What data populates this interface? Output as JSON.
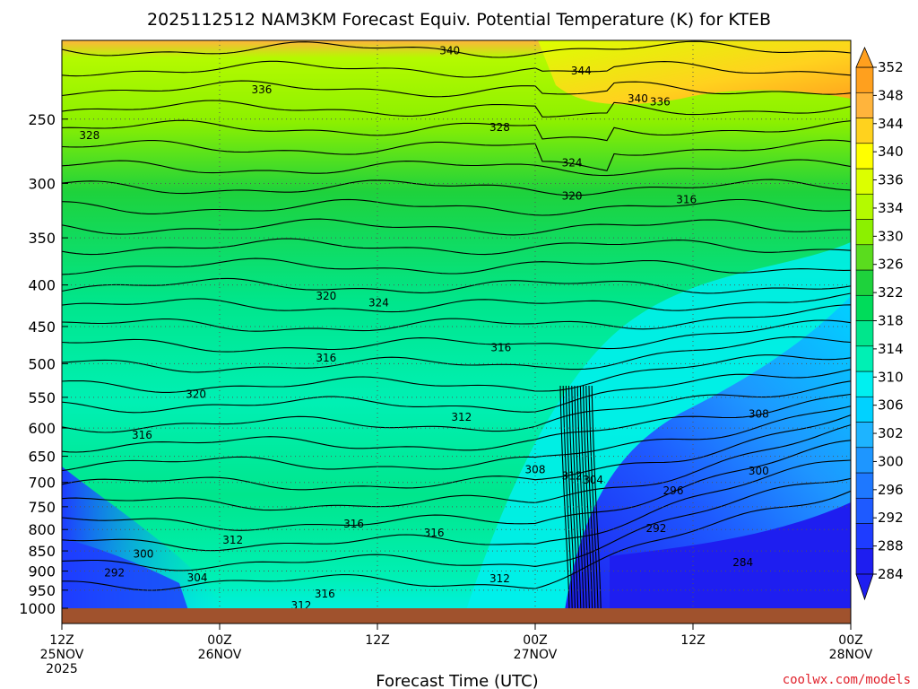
{
  "chart_data": {
    "type": "contour",
    "title": "2025112512 NAM3KM Forecast Equiv. Potential Temperature (K) for KTEB",
    "xlabel": "Forecast Time (UTC)",
    "ylabel": "",
    "credit": "coolwx.com/models",
    "y_axis": {
      "scale": "log",
      "reversed": true,
      "range": [
        1000,
        200
      ],
      "ticks": [
        250,
        300,
        350,
        400,
        450,
        500,
        550,
        600,
        650,
        700,
        750,
        800,
        850,
        900,
        950,
        1000
      ]
    },
    "x_axis": {
      "range_hours": [
        0,
        60
      ],
      "ticks": [
        {
          "hour": 0,
          "lines": [
            "12Z",
            "25NOV",
            "2025"
          ]
        },
        {
          "hour": 12,
          "lines": [
            "00Z",
            "26NOV"
          ]
        },
        {
          "hour": 24,
          "lines": [
            "12Z"
          ]
        },
        {
          "hour": 36,
          "lines": [
            "00Z",
            "27NOV"
          ]
        },
        {
          "hour": 48,
          "lines": [
            "12Z"
          ]
        },
        {
          "hour": 60,
          "lines": [
            "00Z",
            "28NOV"
          ]
        }
      ],
      "gridlines_at_hours": [
        12,
        24,
        36,
        48
      ]
    },
    "grid": true,
    "colorbar": {
      "placement": "right",
      "levels": [
        284,
        288,
        292,
        296,
        300,
        302,
        306,
        310,
        314,
        318,
        322,
        326,
        330,
        334,
        336,
        340,
        344,
        348,
        352
      ],
      "colors": [
        "#1e1ef0",
        "#1e3cff",
        "#1e5aff",
        "#1e78ff",
        "#1e96ff",
        "#1eb4ff",
        "#00d2ff",
        "#00f0f0",
        "#00f0b4",
        "#00e68c",
        "#00dc5a",
        "#1ed23c",
        "#5adc1e",
        "#8cf000",
        "#b4fa00",
        "#dcff00",
        "#ffff00",
        "#ffd21e",
        "#ffb43c",
        "#ffa01e"
      ],
      "min_arrow_color": "#1e1ef0",
      "max_arrow_color": "#ffa01e"
    },
    "contour_labels": [
      {
        "value": "340",
        "hour": 29.5,
        "p": 206
      },
      {
        "value": "344",
        "hour": 39.5,
        "p": 218
      },
      {
        "value": "336",
        "hour": 15.2,
        "p": 230
      },
      {
        "value": "340",
        "hour": 43.8,
        "p": 236
      },
      {
        "value": "336",
        "hour": 45.5,
        "p": 238
      },
      {
        "value": "328",
        "hour": 2.1,
        "p": 262
      },
      {
        "value": "328",
        "hour": 33.3,
        "p": 256
      },
      {
        "value": "324",
        "hour": 38.8,
        "p": 283
      },
      {
        "value": "320",
        "hour": 38.8,
        "p": 311
      },
      {
        "value": "316",
        "hour": 47.5,
        "p": 314
      },
      {
        "value": "320",
        "hour": 20.1,
        "p": 413
      },
      {
        "value": "324",
        "hour": 24.1,
        "p": 421
      },
      {
        "value": "316",
        "hour": 33.4,
        "p": 478
      },
      {
        "value": "316",
        "hour": 20.1,
        "p": 492
      },
      {
        "value": "320",
        "hour": 10.2,
        "p": 545
      },
      {
        "value": "312",
        "hour": 30.4,
        "p": 582
      },
      {
        "value": "308",
        "hour": 53.0,
        "p": 577
      },
      {
        "value": "316",
        "hour": 6.1,
        "p": 612
      },
      {
        "value": "308",
        "hour": 36.0,
        "p": 675
      },
      {
        "value": "312",
        "hour": 38.8,
        "p": 687
      },
      {
        "value": "304",
        "hour": 40.4,
        "p": 695
      },
      {
        "value": "300",
        "hour": 53.0,
        "p": 678
      },
      {
        "value": "296",
        "hour": 46.5,
        "p": 717
      },
      {
        "value": "292",
        "hour": 45.2,
        "p": 797
      },
      {
        "value": "316",
        "hour": 22.2,
        "p": 787
      },
      {
        "value": "316",
        "hour": 28.3,
        "p": 808
      },
      {
        "value": "312",
        "hour": 13.0,
        "p": 824
      },
      {
        "value": "300",
        "hour": 6.2,
        "p": 857
      },
      {
        "value": "284",
        "hour": 51.8,
        "p": 878
      },
      {
        "value": "292",
        "hour": 4.0,
        "p": 905
      },
      {
        "value": "304",
        "hour": 10.3,
        "p": 917
      },
      {
        "value": "312",
        "hour": 33.3,
        "p": 919
      },
      {
        "value": "316",
        "hour": 20.0,
        "p": 960
      },
      {
        "value": "312",
        "hour": 18.2,
        "p": 992
      }
    ],
    "terrain_color": "#a0522d"
  }
}
